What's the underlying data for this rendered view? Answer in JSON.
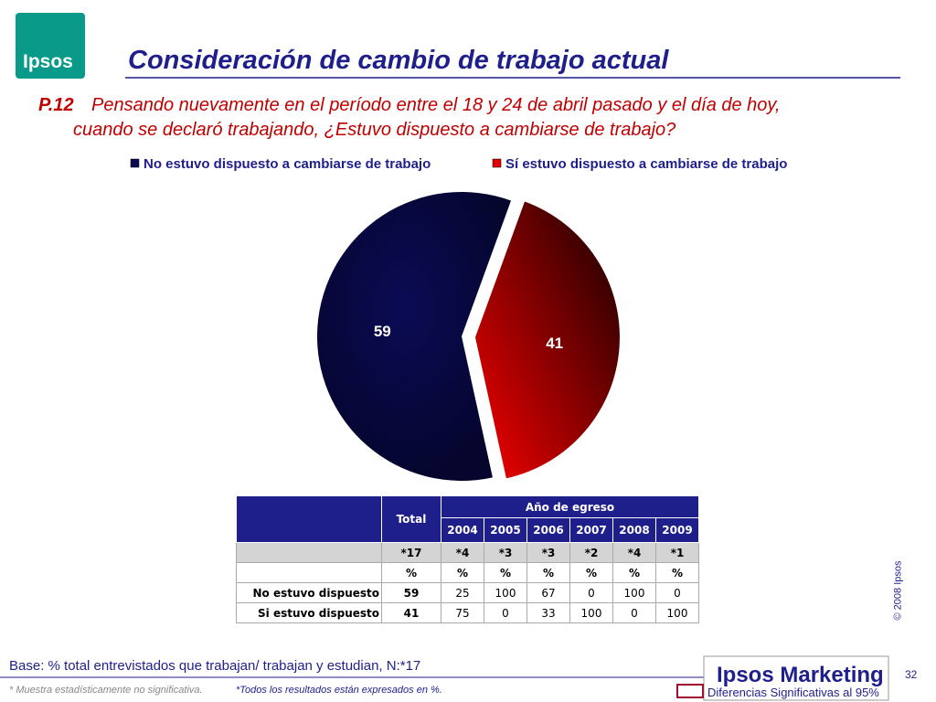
{
  "logo": "Ipsos",
  "header": {
    "title": "Consideración de cambio de trabajo actual",
    "question_code": "P.12",
    "question_lines": [
      "Pensando nuevamente en el período entre el 18 y 24 de abril pasado y  el día de hoy,",
      "cuando se declaró trabajando, ¿Estuvo dispuesto a cambiarse de trabajo?"
    ]
  },
  "chart_data": {
    "type": "pie",
    "categories": [
      "No estuvo dispuesto a cambiarse de trabajo",
      "Sí estuvo dispuesto a cambiarse de trabajo"
    ],
    "values": [
      59,
      41
    ],
    "colors": [
      "#0b0b55",
      "#e00000"
    ],
    "legend": "top"
  },
  "table": {
    "total_header": "Total",
    "group_header": "Año de egreso",
    "years": [
      "2004",
      "2005",
      "2006",
      "2007",
      "2008",
      "2009"
    ],
    "rows": [
      [
        "",
        "*17",
        "*4",
        "*3",
        "*3",
        "*2",
        "*4",
        "*1"
      ],
      [
        "",
        "%",
        "%",
        "%",
        "%",
        "%",
        "%",
        "%"
      ],
      [
        "No estuvo dispuesto",
        "59",
        "25",
        "100",
        "67",
        "0",
        "100",
        "0"
      ],
      [
        "Si estuvo dispuesto",
        "41",
        "75",
        "0",
        "33",
        "100",
        "0",
        "100"
      ]
    ]
  },
  "footer": {
    "base": "Base: % total entrevistados que trabajan/ trabajan y estudian, N:*17",
    "note_1": "* Muestra estadísticamente no significativa.",
    "note_2": "*Todos los resultados están expresados en %.",
    "brand": "Ipsos Marketing",
    "page": "32",
    "copyright": "© 2008 Ipsos",
    "significance": "Diferencias Significativas al 95%"
  }
}
